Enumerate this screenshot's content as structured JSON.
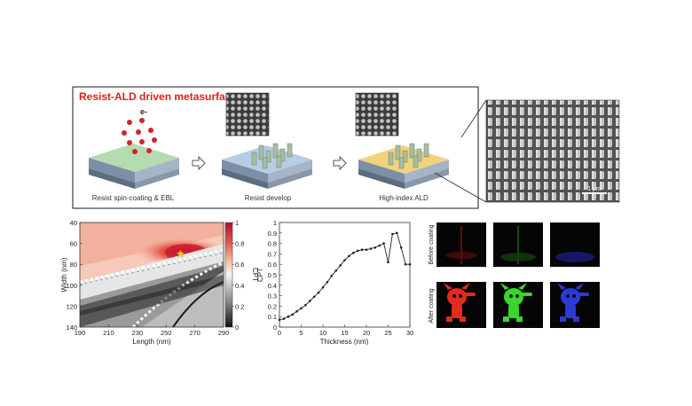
{
  "top_panel": {
    "title": "Resist-ALD driven metasurface",
    "electron_label": "e-",
    "steps": [
      {
        "label": "Resist spin-coating & EBL"
      },
      {
        "label": "Resist develop"
      },
      {
        "label": "High-index ALD"
      }
    ],
    "sem_scale_label": "1 μm",
    "colors": {
      "title": "#e0201b",
      "resist": "#b5dbb0",
      "develop": "#b7cde6",
      "ald": "#f2d27d",
      "substrate": "#9aa9ba",
      "electron": "#d8202a"
    }
  },
  "chart_data": [
    {
      "type": "heatmap",
      "xlabel": "Length (nm)",
      "ylabel": "Width (nm)",
      "x_ticks": [
        "190",
        "210",
        "230",
        "250",
        "270",
        "290"
      ],
      "y_ticks": [
        "40",
        "60",
        "80",
        "100",
        "120",
        "140"
      ],
      "xlim": [
        190,
        290
      ],
      "ylim": [
        40,
        140
      ],
      "colorbar": {
        "label": "CPT",
        "ticks": [
          "0",
          "0.2",
          "0.4",
          "0.6",
          "0.8",
          "1"
        ],
        "range": [
          0,
          1
        ]
      },
      "marker": {
        "x": 260,
        "y": 70,
        "symbol": "star",
        "color": "#f7d31a"
      }
    },
    {
      "type": "line",
      "xlabel": "Thickness (nm)",
      "ylabel": "CPT",
      "x_ticks": [
        "0",
        "5",
        "10",
        "15",
        "20",
        "25",
        "30"
      ],
      "y_ticks": [
        "0",
        "0.1",
        "0.2",
        "0.3",
        "0.4",
        "0.5",
        "0.6",
        "0.7",
        "0.8",
        "0.9",
        "1"
      ],
      "xlim": [
        0,
        30
      ],
      "ylim": [
        0,
        1
      ],
      "series": [
        {
          "x": [
            0,
            1,
            2,
            3,
            4,
            5,
            6,
            7,
            8,
            9,
            10,
            11,
            12,
            13,
            14,
            15,
            16,
            17,
            18,
            19,
            20,
            21,
            22,
            23,
            24,
            25,
            26,
            27,
            28,
            29,
            30
          ],
          "y": [
            0.07,
            0.08,
            0.1,
            0.12,
            0.15,
            0.18,
            0.21,
            0.25,
            0.29,
            0.33,
            0.38,
            0.43,
            0.49,
            0.54,
            0.59,
            0.64,
            0.68,
            0.71,
            0.73,
            0.74,
            0.74,
            0.75,
            0.76,
            0.78,
            0.8,
            0.62,
            0.89,
            0.9,
            0.76,
            0.6,
            0.6
          ]
        }
      ]
    }
  ],
  "holograms": {
    "row_labels": [
      "Before coating",
      "After coating"
    ],
    "colors": [
      "#e22a1f",
      "#39d62c",
      "#2b3ad4"
    ]
  }
}
